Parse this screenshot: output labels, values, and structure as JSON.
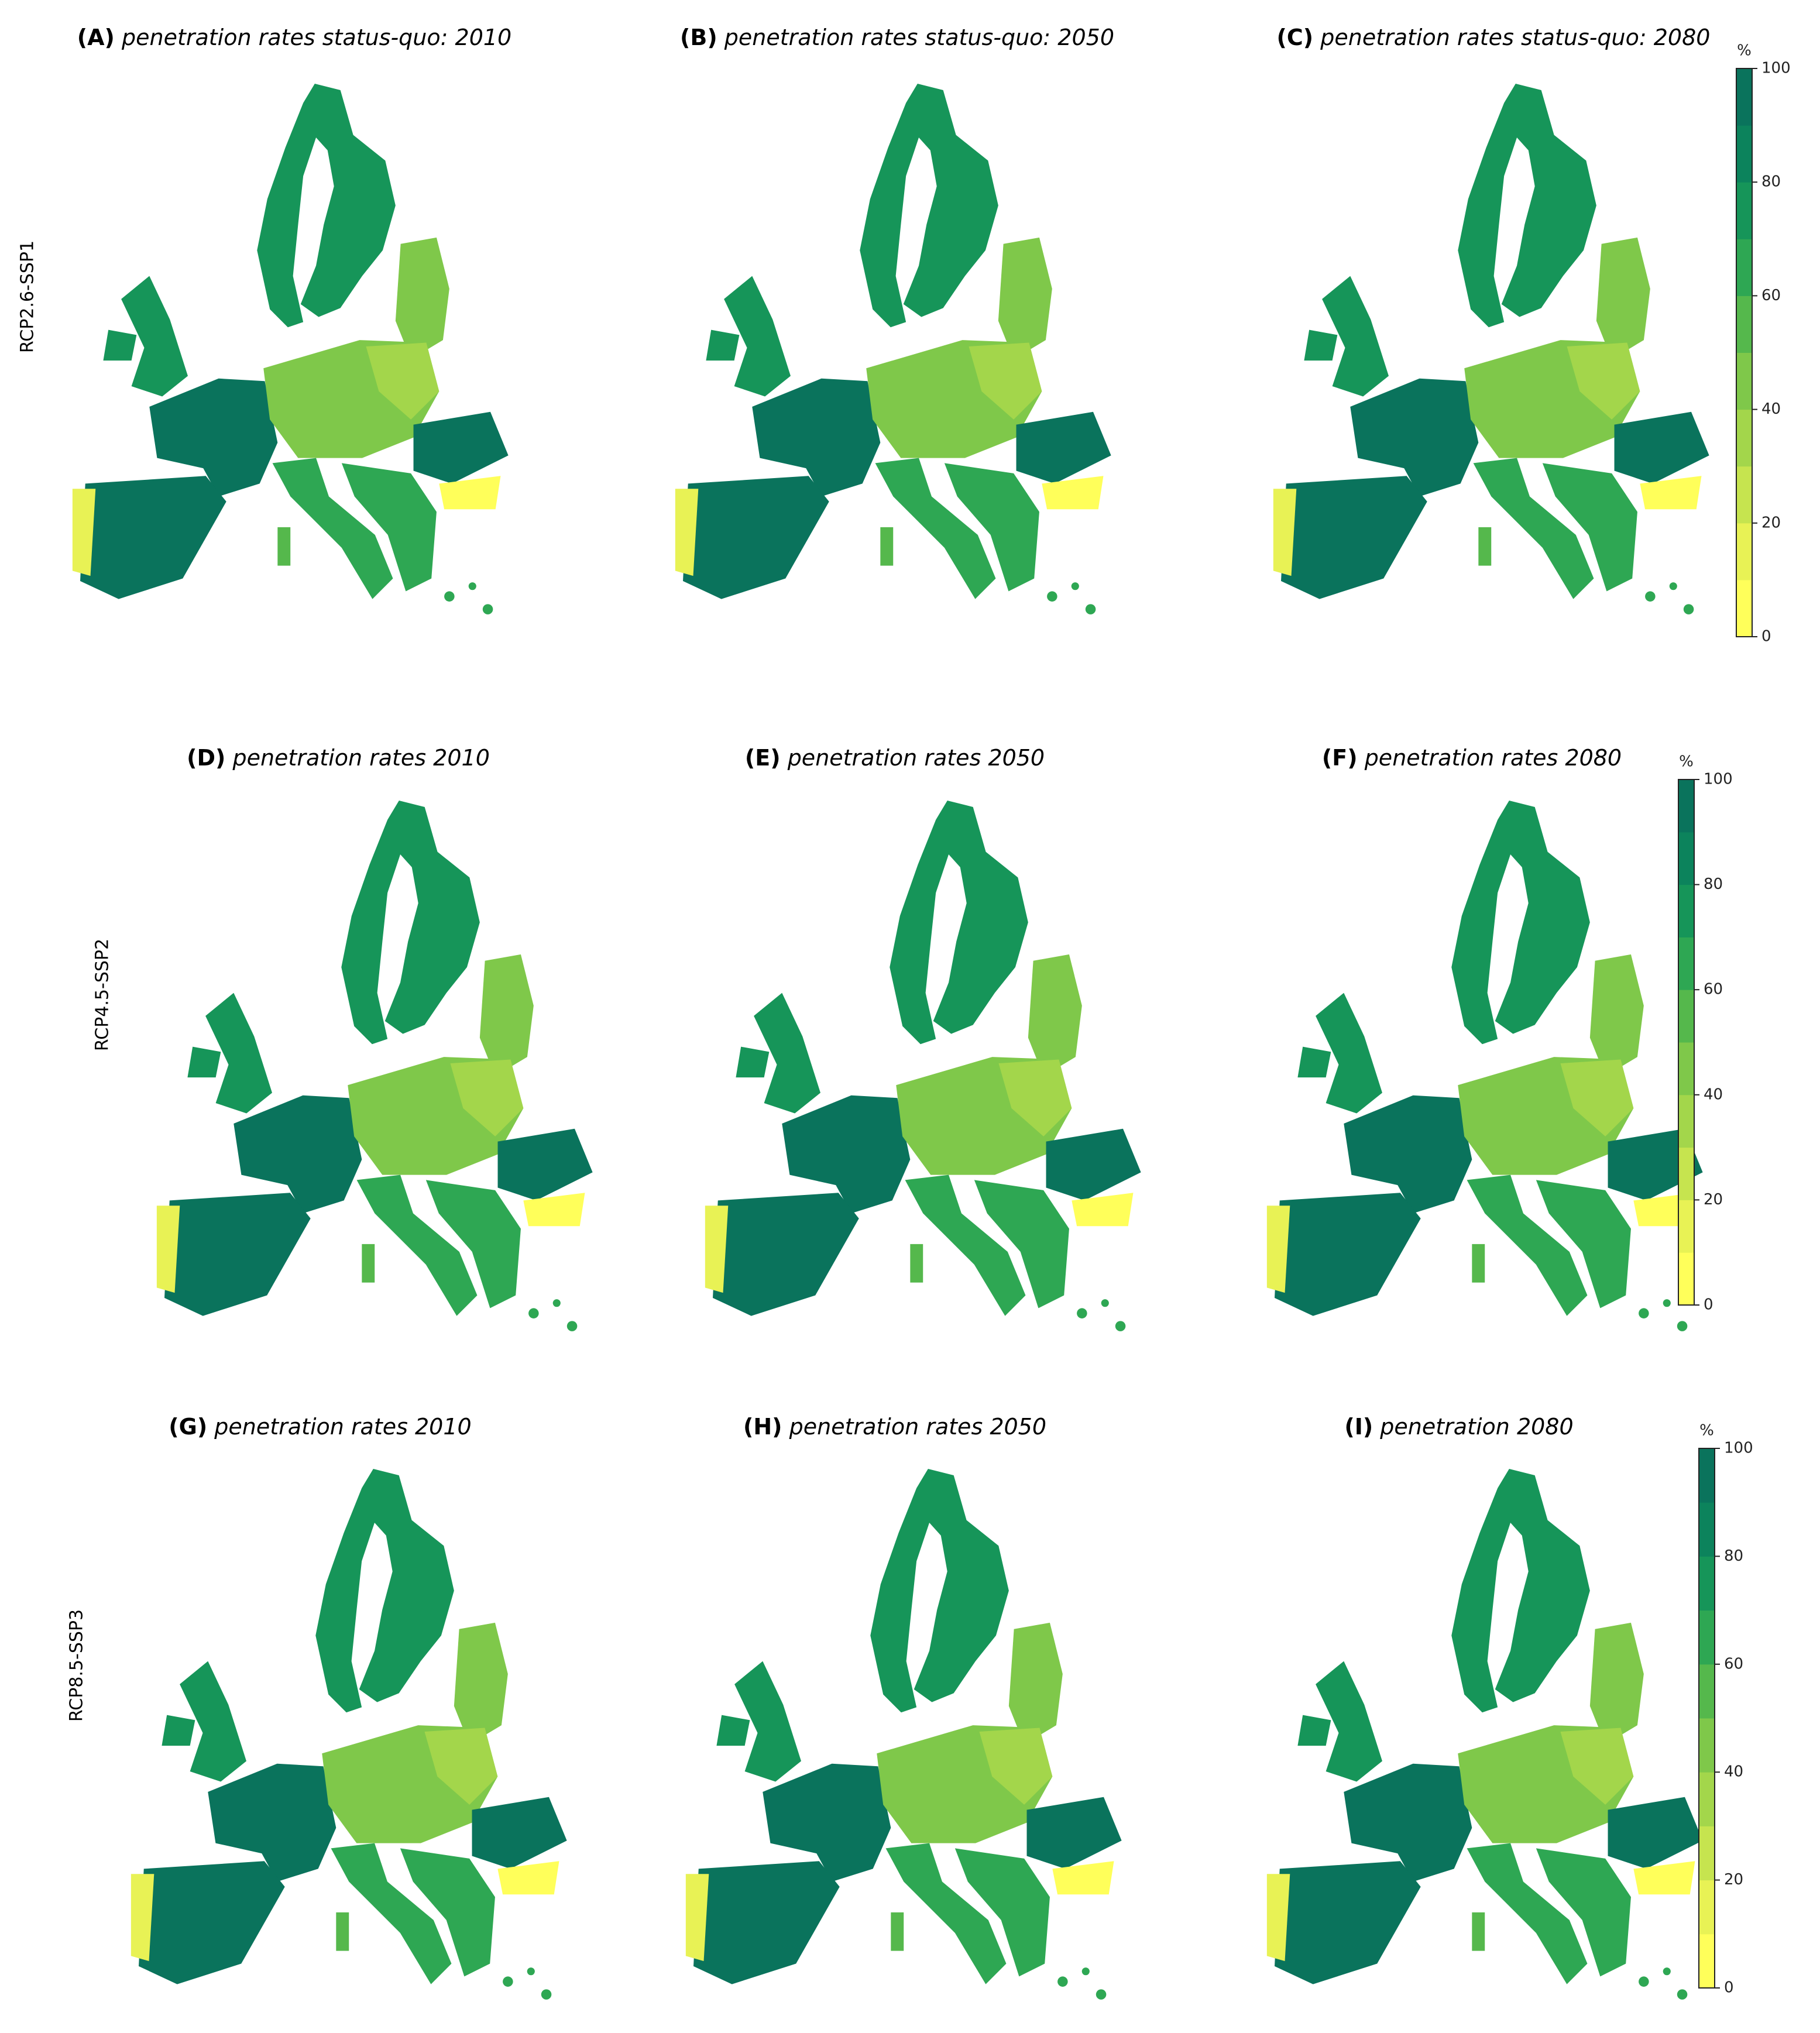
{
  "panels": [
    {
      "label": "(A)",
      "title": "penetration rates status-quo: 2010"
    },
    {
      "label": "(B)",
      "title": "penetration rates status-quo: 2050"
    },
    {
      "label": "(C)",
      "title": "penetration rates status-quo: 2080"
    },
    {
      "label": "(D)",
      "title": "penetration rates 2010"
    },
    {
      "label": "(E)",
      "title": "penetration rates 2050"
    },
    {
      "label": "(F)",
      "title": "penetration rates 2080"
    },
    {
      "label": "(G)",
      "title": "penetration rates 2010"
    },
    {
      "label": "(H)",
      "title": "penetration rates 2050"
    },
    {
      "label": "(I)",
      "title": "penetration 2080"
    }
  ],
  "row_labels": [
    "RCP2.6-SSP1",
    "RCP4.5-SSP2",
    "RCP8.5-SSP3"
  ],
  "colorbar": {
    "unit": "%",
    "range": [
      0,
      100
    ],
    "ticks": [
      0,
      20,
      40,
      60,
      80,
      100
    ],
    "colors": [
      "#ffff5a",
      "#e8f255",
      "#c6e44f",
      "#a3d64b",
      "#7fc84a",
      "#55b84c",
      "#2ea753",
      "#169559",
      "#0c835c",
      "#0a735c"
    ]
  }
}
